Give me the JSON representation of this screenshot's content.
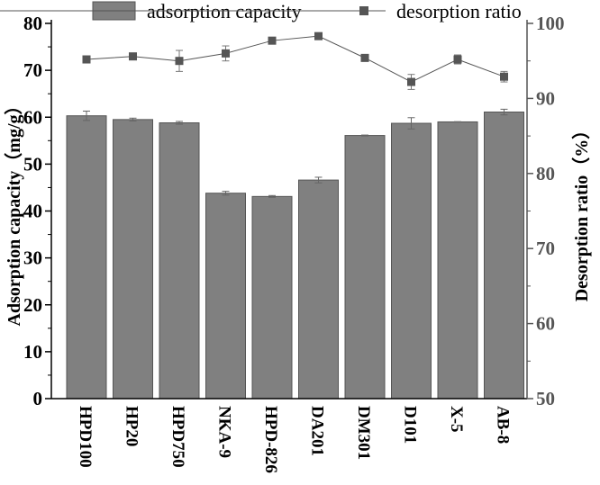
{
  "chart_data": {
    "type": "bar",
    "categories": [
      "HPD100",
      "HP20",
      "HPD750",
      "NKA-9",
      "HPD-826",
      "DA201",
      "DM301",
      "D101",
      "X-5",
      "AB-8"
    ],
    "series": [
      {
        "name": "adsorption capacity",
        "type": "bar",
        "axis": "left",
        "values": [
          60.3,
          59.5,
          58.8,
          43.8,
          43.1,
          46.6,
          56.1,
          58.7,
          59.0,
          61.1
        ],
        "errors": [
          1.0,
          0.3,
          0.3,
          0.4,
          0.2,
          0.6,
          0.1,
          1.2,
          0.05,
          0.6
        ]
      },
      {
        "name": "desorption ratio",
        "type": "line",
        "axis": "right",
        "values": [
          95.2,
          95.6,
          95.0,
          96.0,
          97.7,
          98.3,
          95.4,
          92.2,
          95.2,
          92.9
        ],
        "errors": [
          0.1,
          0.1,
          1.4,
          1.0,
          0.1,
          0.1,
          0.1,
          1.0,
          0.6,
          0.7
        ]
      }
    ],
    "ylabel": "Adsorption capacity（mg/g）",
    "y2label": "Desorption ratio（%）",
    "ylim": [
      0,
      80
    ],
    "y2lim": [
      50,
      100
    ],
    "yticks": [
      "0",
      "10",
      "20",
      "30",
      "40",
      "50",
      "60",
      "70",
      "80"
    ],
    "y2ticks": [
      "50",
      "60",
      "70",
      "80",
      "90",
      "100"
    ],
    "legend_position": "top",
    "grid": false,
    "colors": {
      "bar": "#808080",
      "line": "#555555",
      "marker": "#555555"
    }
  }
}
